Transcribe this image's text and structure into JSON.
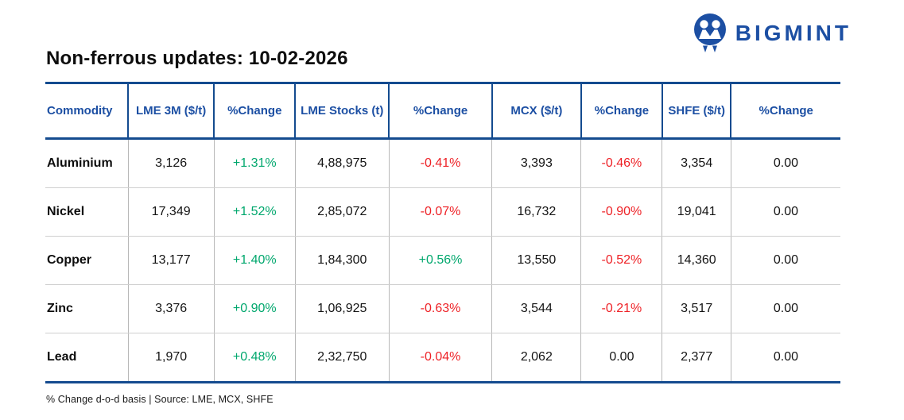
{
  "logo": {
    "brand": "BIGMINT"
  },
  "header": {
    "title": "Non-ferrous updates: 10-02-2026"
  },
  "chart_data": {
    "type": "table",
    "title": "Non-ferrous updates: 10-02-2026",
    "columns": [
      "Commodity",
      "LME 3M ($/t)",
      "%Change",
      "LME Stocks (t)",
      "%Change",
      "MCX ($/t)",
      "%Change",
      "SHFE ($/t)",
      "%Change"
    ],
    "rows": [
      [
        "Aluminium",
        "3,126",
        "+1.31%",
        "4,88,975",
        "-0.41%",
        "3,393",
        "-0.46%",
        "3,354",
        "0.00"
      ],
      [
        "Nickel",
        "17,349",
        "+1.52%",
        "2,85,072",
        "-0.07%",
        "16,732",
        "-0.90%",
        "19,041",
        "0.00"
      ],
      [
        "Copper",
        "13,177",
        "+1.40%",
        "1,84,300",
        "+0.56%",
        "13,550",
        "-0.52%",
        "14,360",
        "0.00"
      ],
      [
        "Zinc",
        "3,376",
        "+0.90%",
        "1,06,925",
        "-0.63%",
        "3,544",
        "-0.21%",
        "3,517",
        "0.00"
      ],
      [
        "Lead",
        "1,970",
        "+0.48%",
        "2,32,750",
        "-0.04%",
        "2,062",
        "0.00",
        "2,377",
        "0.00"
      ]
    ],
    "footnote": "% Change d-o-d basis | Source: LME, MCX, SHFE",
    "legend_position": "none",
    "grid": true
  },
  "footer": {
    "note": "% Change d-o-d basis | Source: LME, MCX, SHFE"
  },
  "colors": {
    "accent_blue": "#1c4fa3",
    "line_blue": "#144b8f",
    "positive_green": "#00a76d",
    "negative_red": "#ee2227",
    "row_divider_gray": "#cfcfcf"
  }
}
